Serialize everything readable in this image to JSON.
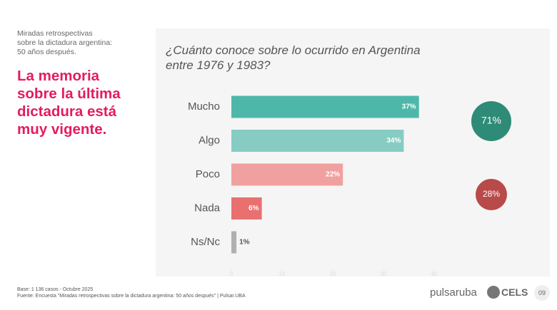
{
  "header": {
    "kicker_lines": [
      "Miradas retrospectivas",
      "sobre la dictadura argentina:",
      "50 años después."
    ],
    "headline_lines": [
      "La memoria",
      "sobre la última",
      "dictadura está",
      "muy vigente."
    ]
  },
  "chart_data": {
    "type": "hbar",
    "title_lines": [
      "¿Cuánto conoce sobre lo ocurrido en Argentina",
      "entre 1976 y 1983?"
    ],
    "categories": [
      "Mucho",
      "Algo",
      "Poco",
      "Nada",
      "Ns/Nc"
    ],
    "values": [
      37,
      34,
      22,
      6,
      1
    ],
    "value_labels": [
      "37%",
      "34%",
      "22%",
      "6%",
      "1%"
    ],
    "colors": [
      "#4db8a9",
      "#86ccc3",
      "#f0a19f",
      "#e8706f",
      "#b0b0b0"
    ],
    "xlim": [
      0,
      40
    ],
    "xticks": [
      0,
      10,
      20,
      30,
      40
    ],
    "summary": [
      {
        "value": 71,
        "label": "71%",
        "color": "#2e8b77"
      },
      {
        "value": 28,
        "label": "28%",
        "color": "#b84a4a"
      }
    ]
  },
  "footer": {
    "base": "Base: 1 136 casos - Octubre 2025",
    "source": "Fuente: Encuesta \"Miradas retrospectivas sobre la dictadura argentina: 50 años después\" | Pulsar.UBA",
    "logo1": "pulsar",
    "logo1b": "uba",
    "logo2": "CELS",
    "page": "09"
  }
}
